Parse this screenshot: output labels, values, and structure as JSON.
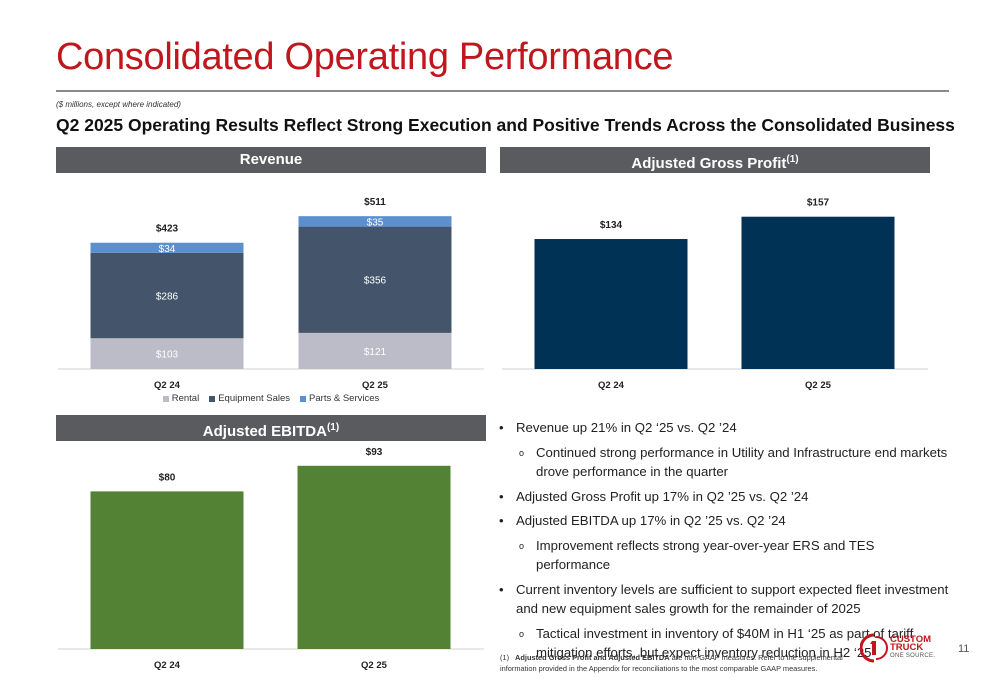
{
  "title": "Consolidated Operating Performance",
  "units_note": "($ millions, except where indicated)",
  "subtitle": "Q2 2025 Operating Results Reflect Strong Execution and Positive Trends Across the Consolidated Business",
  "panels": {
    "revenue": "Revenue",
    "gross_profit": "Adjusted Gross Profit",
    "ebitda": "Adjusted EBITDA",
    "footnote_marker": "(1)"
  },
  "colors": {
    "rental": "#bcbcc8",
    "equipment_sales": "#44546a",
    "parts_services": "#5b8fce",
    "gross_profit_bar": "#003256",
    "ebitda_bar": "#548235",
    "title_red": "#c0161e",
    "header_gray": "#595b5e"
  },
  "chart_data": [
    {
      "type": "bar",
      "stacked": true,
      "categories": [
        "Q2 24",
        "Q2 25"
      ],
      "series": [
        {
          "name": "Rental",
          "values": [
            103,
            121
          ],
          "labels": [
            "$103",
            "$121"
          ]
        },
        {
          "name": "Equipment Sales",
          "values": [
            286,
            356
          ],
          "labels": [
            "$286",
            "$356"
          ]
        },
        {
          "name": "Parts & Services",
          "values": [
            34,
            35
          ],
          "labels": [
            "$34",
            "$35"
          ]
        }
      ],
      "totals": [
        423,
        511
      ],
      "total_labels": [
        "$423",
        "$511"
      ],
      "legend": "bottom"
    },
    {
      "type": "bar",
      "categories": [
        "Q2 24",
        "Q2 25"
      ],
      "values": [
        134,
        157
      ],
      "labels": [
        "$134",
        "$157"
      ]
    },
    {
      "type": "bar",
      "categories": [
        "Q2 24",
        "Q2 25"
      ],
      "values": [
        80,
        93
      ],
      "labels": [
        "$80",
        "$93"
      ]
    }
  ],
  "bullets": [
    {
      "level": 1,
      "text": "Revenue up 21% in Q2 ‘25 vs. Q2 ’24"
    },
    {
      "level": 2,
      "text": "Continued strong performance in Utility and Infrastructure end markets drove performance in the quarter"
    },
    {
      "level": 1,
      "text": "Adjusted Gross Profit up 17% in Q2 ’25 vs. Q2 ’24"
    },
    {
      "level": 1,
      "text": "Adjusted EBITDA up 17% in Q2 ’25 vs. Q2 ’24"
    },
    {
      "level": 2,
      "text": "Improvement reflects strong year-over-year ERS and TES performance"
    },
    {
      "level": 1,
      "text": "Current inventory levels are sufficient to support expected fleet investment and new equipment sales growth for the remainder of 2025"
    },
    {
      "level": 2,
      "text": "Tactical investment in inventory of $40M in H1 ‘25 as part of tariff mitigation efforts, but expect inventory reduction in H2 ‘25"
    }
  ],
  "footnote": {
    "number": "(1)",
    "bold": "Adjusted Gross Profit and Adjusted EBITDA",
    "text": " are non-GAAP measures. Refer to the supplemental information provided in the Appendix for reconciliations to the most comparable GAAP measures."
  },
  "logo": {
    "line1": "CUSTOM",
    "line2": "TRUCK",
    "tagline": "ONE SOURCE."
  },
  "page_number": "11"
}
